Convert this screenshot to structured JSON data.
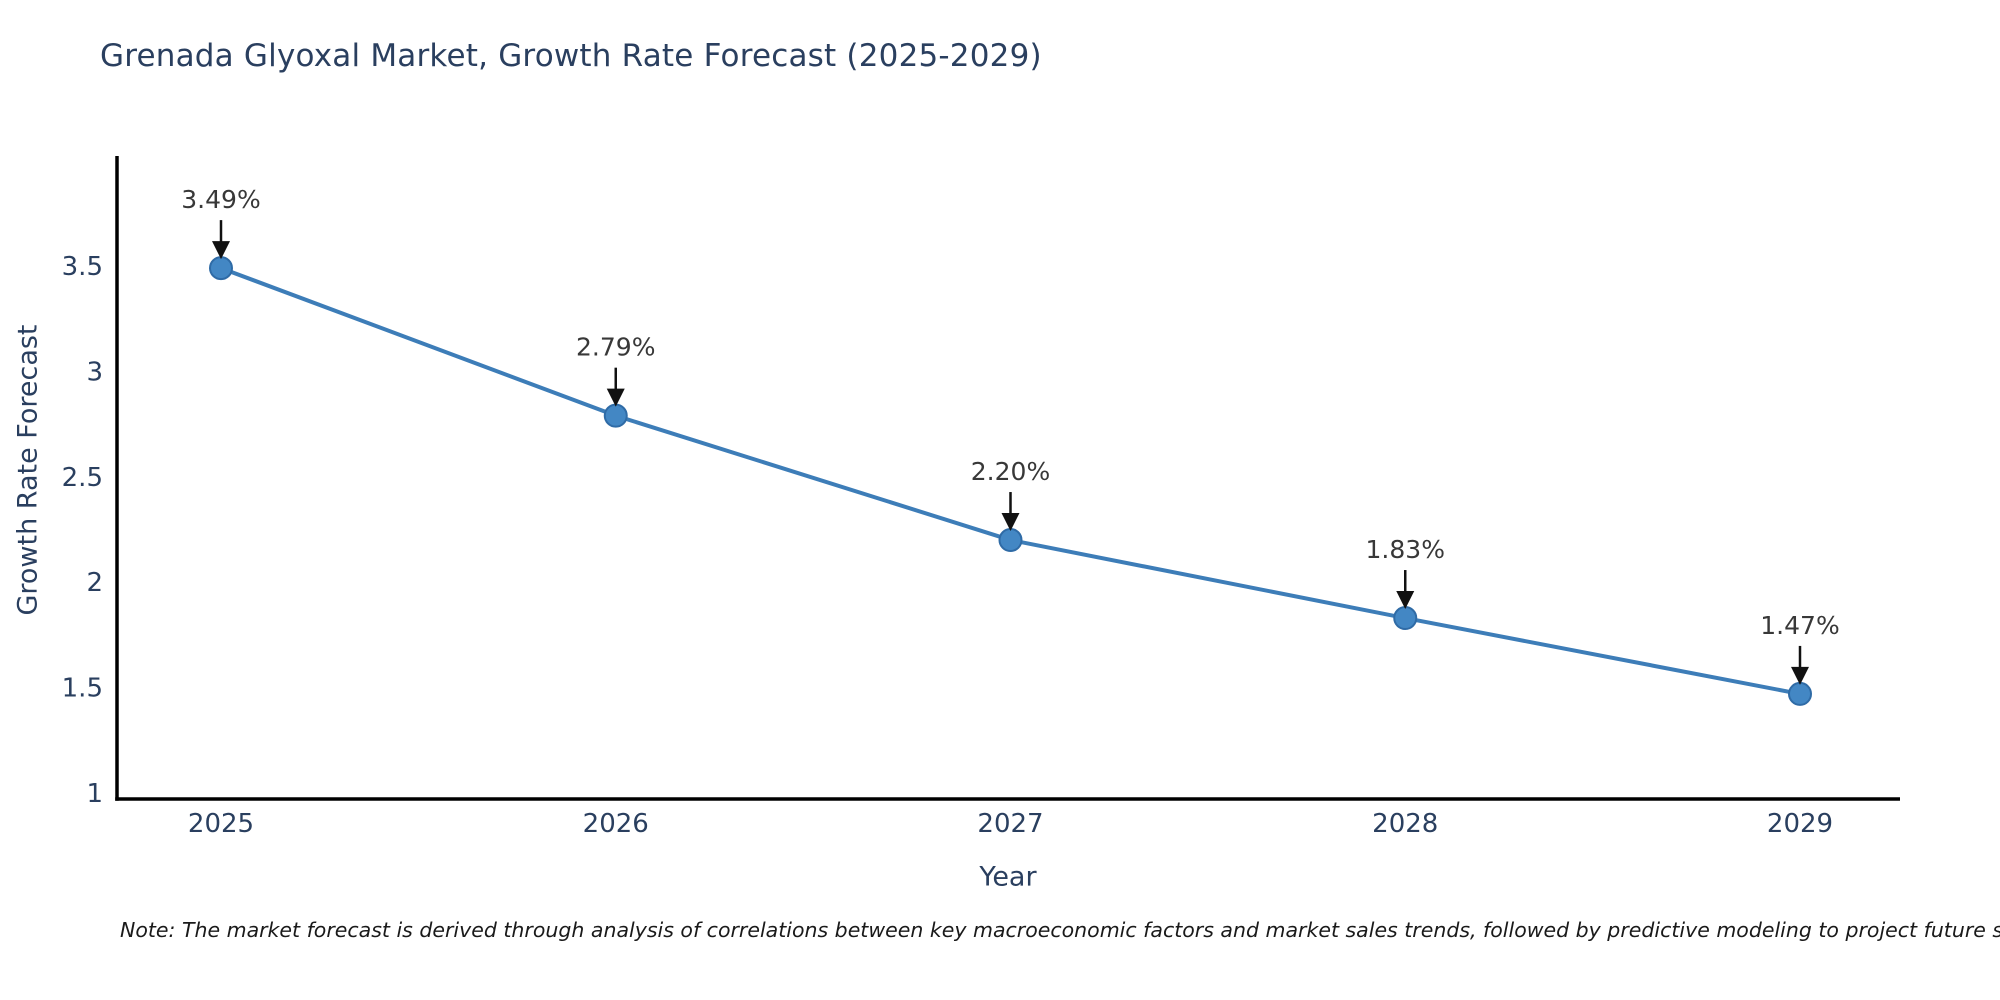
{
  "note": "Note: The market forecast is derived through analysis of correlations between key macroeconomic factors and market sales trends, followed by predictive modeling to project future sales",
  "chart_data": {
    "type": "line",
    "title": "Grenada Glyoxal Market, Growth Rate Forecast (2025-2029)",
    "xlabel": "Year",
    "ylabel": "Growth Rate Forecast",
    "x": [
      2025,
      2026,
      2027,
      2028,
      2029
    ],
    "y": [
      3.49,
      2.79,
      2.2,
      1.83,
      1.47
    ],
    "point_labels": [
      "3.49%",
      "2.79%",
      "2.20%",
      "1.83%",
      "1.47%"
    ],
    "xticks": [
      "2025",
      "2026",
      "2027",
      "2028",
      "2029"
    ],
    "yticks": [
      1,
      1.5,
      2,
      2.5,
      3,
      3.5
    ],
    "ylim": [
      0.97,
      4.03
    ],
    "grid": false,
    "legend": false,
    "annotation_style": "arrow-down-to-point",
    "colors": {
      "line": "#3d7db8",
      "marker_fill": "#4387c4",
      "marker_stroke": "#2f6ba6",
      "axis": "#000000",
      "arrow": "#111111",
      "text": "#2a3f5f",
      "annotation_text": "#383838",
      "note_text": "#1a1a1a",
      "background": "#ffffff"
    }
  }
}
